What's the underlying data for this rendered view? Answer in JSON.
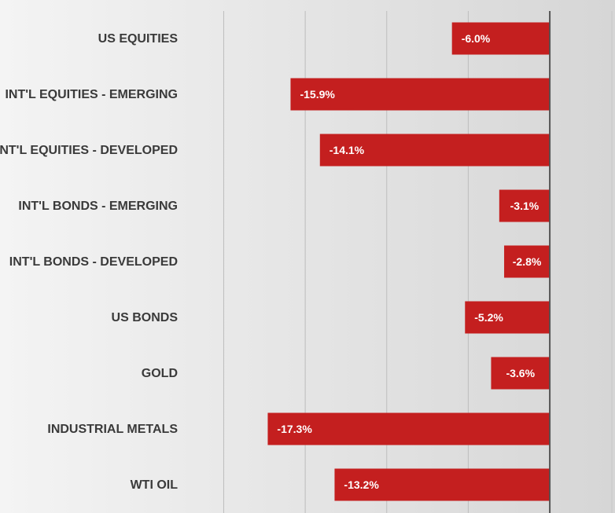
{
  "chart_data": {
    "type": "bar",
    "orientation": "horizontal",
    "categories": [
      "US EQUITIES",
      "INT'L EQUITIES - EMERGING",
      "INT'L EQUITIES - DEVELOPED",
      "INT'L BONDS - EMERGING",
      "INT'L BONDS - DEVELOPED",
      "US BONDS",
      "GOLD",
      "INDUSTRIAL METALS",
      "WTI OIL"
    ],
    "values": [
      -6.0,
      -15.9,
      -14.1,
      -3.1,
      -2.8,
      -5.2,
      -3.6,
      -17.3,
      -13.2
    ],
    "data_labels": [
      "-6.0%",
      "-15.9%",
      "-14.1%",
      "-3.1%",
      "-2.8%",
      "-5.2%",
      "-3.6%",
      "-17.3%",
      "-13.2%"
    ],
    "xlim": [
      -22,
      4
    ],
    "grid": true,
    "bar_color": "#c41f1f",
    "title": "",
    "xlabel": "",
    "ylabel": ""
  }
}
